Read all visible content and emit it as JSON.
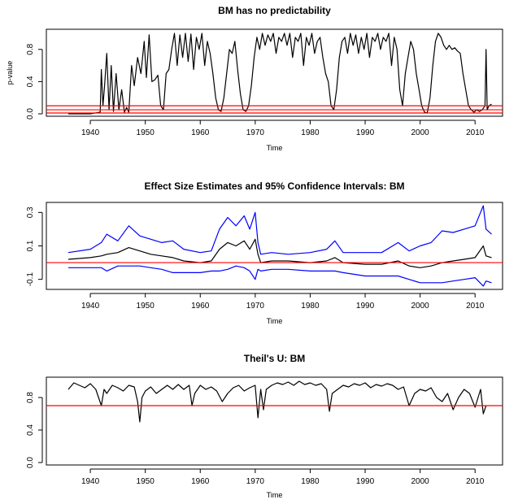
{
  "chart_data": [
    {
      "type": "line",
      "title": "BM has no predictability",
      "xlabel": "Time",
      "ylabel": "p-value",
      "xlim": [
        1932,
        2015
      ],
      "ylim": [
        -0.03,
        1.05
      ],
      "x_ticks": [
        "1940",
        "1950",
        "1960",
        "1970",
        "1980",
        "1990",
        "2000",
        "2010"
      ],
      "y_ticks": [
        "0.0",
        "0.4",
        "0.8"
      ],
      "x_tick_values": [
        1940,
        1950,
        1960,
        1970,
        1980,
        1990,
        2000,
        2010
      ],
      "y_tick_values": [
        0.0,
        0.4,
        0.8
      ],
      "reference_lines": [
        0.01,
        0.05,
        0.1
      ],
      "reference_color": "#ff0000",
      "series": [
        {
          "color": "#000000",
          "x": [
            1936.0,
            1940.0,
            1941.8,
            1942.0,
            1942.3,
            1942.6,
            1943.0,
            1943.4,
            1943.8,
            1944.2,
            1944.7,
            1945.2,
            1945.7,
            1946.2,
            1946.6,
            1947.0,
            1947.5,
            1948.0,
            1948.6,
            1949.2,
            1949.8,
            1950.2,
            1950.7,
            1951.2,
            1951.7,
            1952.3,
            1952.8,
            1953.3,
            1953.8,
            1954.3,
            1954.8,
            1955.3,
            1955.8,
            1956.3,
            1956.8,
            1957.3,
            1957.8,
            1958.3,
            1958.8,
            1959.3,
            1959.8,
            1960.3,
            1960.8,
            1961.3,
            1961.8,
            1962.3,
            1962.8,
            1963.3,
            1963.8,
            1964.3,
            1964.8,
            1965.3,
            1965.8,
            1966.3,
            1966.8,
            1967.3,
            1967.8,
            1968.3,
            1968.8,
            1969.3,
            1969.8,
            1970.3,
            1970.8,
            1971.3,
            1971.8,
            1972.3,
            1972.8,
            1973.3,
            1973.8,
            1974.3,
            1974.8,
            1975.3,
            1975.8,
            1976.3,
            1976.8,
            1977.3,
            1977.8,
            1978.3,
            1978.8,
            1979.3,
            1979.8,
            1980.3,
            1980.8,
            1981.3,
            1981.8,
            1982.3,
            1982.8,
            1983.3,
            1983.8,
            1984.3,
            1984.8,
            1985.3,
            1985.8,
            1986.3,
            1986.8,
            1987.3,
            1987.8,
            1988.3,
            1988.8,
            1989.3,
            1989.8,
            1990.3,
            1990.8,
            1991.3,
            1991.8,
            1992.3,
            1992.8,
            1993.3,
            1993.8,
            1994.3,
            1994.8,
            1995.3,
            1995.8,
            1996.3,
            1996.8,
            1997.3,
            1997.8,
            1998.3,
            1998.8,
            1999.3,
            1999.8,
            2000.3,
            2000.8,
            2001.3,
            2001.8,
            2002.3,
            2002.8,
            2003.3,
            2003.8,
            2004.3,
            2004.8,
            2005.3,
            2005.8,
            2006.3,
            2006.8,
            2007.3,
            2007.8,
            2008.3,
            2008.8,
            2009.3,
            2009.8,
            2010.3,
            2010.8,
            2011.3,
            2011.8,
            2012.0,
            2012.2,
            2012.5,
            2013.0
          ],
          "y": [
            0.0,
            0.0,
            0.02,
            0.55,
            0.1,
            0.35,
            0.75,
            0.05,
            0.6,
            0.03,
            0.5,
            0.05,
            0.3,
            0.02,
            0.08,
            0.02,
            0.6,
            0.35,
            0.7,
            0.5,
            0.9,
            0.45,
            0.98,
            0.4,
            0.42,
            0.48,
            0.1,
            0.05,
            0.5,
            0.55,
            0.8,
            1.0,
            0.6,
            0.98,
            0.7,
            1.0,
            0.65,
            0.99,
            0.55,
            0.95,
            0.8,
            1.0,
            0.6,
            0.9,
            0.75,
            0.5,
            0.2,
            0.05,
            0.03,
            0.2,
            0.5,
            0.8,
            0.75,
            0.9,
            0.55,
            0.25,
            0.05,
            0.03,
            0.1,
            0.35,
            0.7,
            0.95,
            0.8,
            1.0,
            0.85,
            0.98,
            0.9,
            1.0,
            0.75,
            0.95,
            0.9,
            1.0,
            0.85,
            1.0,
            0.7,
            0.95,
            0.9,
            1.0,
            0.6,
            0.95,
            0.85,
            1.0,
            0.75,
            0.9,
            0.95,
            0.7,
            0.5,
            0.4,
            0.1,
            0.05,
            0.3,
            0.7,
            0.9,
            0.95,
            0.75,
            1.0,
            0.85,
            0.98,
            0.75,
            0.95,
            0.8,
            1.0,
            0.7,
            0.95,
            0.9,
            1.0,
            0.8,
            0.95,
            0.9,
            1.0,
            0.6,
            0.95,
            0.8,
            0.3,
            0.1,
            0.5,
            0.7,
            0.9,
            0.8,
            0.5,
            0.3,
            0.1,
            0.02,
            0.01,
            0.2,
            0.6,
            0.9,
            1.0,
            0.95,
            0.85,
            0.8,
            0.85,
            0.8,
            0.82,
            0.78,
            0.75,
            0.5,
            0.3,
            0.1,
            0.05,
            0.02,
            0.05,
            0.03,
            0.05,
            0.1,
            0.8,
            0.05,
            0.1,
            0.12
          ]
        }
      ]
    },
    {
      "type": "line",
      "title": "Effect Size Estimates and 95% Confidence Intervals: BM",
      "xlabel": "Time",
      "ylabel": "",
      "xlim": [
        1932,
        2015
      ],
      "ylim": [
        -0.16,
        0.36
      ],
      "x_ticks": [
        "1940",
        "1950",
        "1960",
        "1970",
        "1980",
        "1990",
        "2000",
        "2010"
      ],
      "y_ticks": [
        "-0.1",
        "0.1",
        "0.3"
      ],
      "x_tick_values": [
        1940,
        1950,
        1960,
        1970,
        1980,
        1990,
        2000,
        2010
      ],
      "y_tick_values": [
        -0.1,
        0.1,
        0.3
      ],
      "reference_lines": [
        0.0
      ],
      "reference_color": "#ff0000",
      "series": [
        {
          "color": "#000000",
          "x": [
            1936.0,
            1940.0,
            1942.0,
            1943.0,
            1945.0,
            1947.0,
            1949.0,
            1951.0,
            1953.0,
            1955.0,
            1957.0,
            1960.0,
            1962.0,
            1963.5,
            1965.0,
            1966.5,
            1968.0,
            1969.0,
            1970.0,
            1970.5,
            1971.0,
            1973.0,
            1976.0,
            1980.0,
            1983.0,
            1984.5,
            1986.0,
            1990.0,
            1993.0,
            1996.0,
            1998.0,
            2000.0,
            2002.0,
            2004.0,
            2006.0,
            2008.0,
            2010.0,
            2011.5,
            2012.0,
            2013.0
          ],
          "y": [
            0.02,
            0.03,
            0.04,
            0.05,
            0.06,
            0.09,
            0.07,
            0.05,
            0.04,
            0.03,
            0.01,
            0.0,
            0.01,
            0.08,
            0.12,
            0.1,
            0.13,
            0.08,
            0.14,
            0.05,
            0.0,
            0.01,
            0.01,
            0.0,
            0.01,
            0.03,
            0.0,
            -0.01,
            -0.01,
            0.01,
            -0.02,
            -0.03,
            -0.02,
            0.0,
            0.01,
            0.02,
            0.03,
            0.1,
            0.04,
            0.03
          ]
        },
        {
          "color": "#0000ff",
          "x": [
            1936.0,
            1940.0,
            1942.0,
            1943.0,
            1945.0,
            1947.0,
            1949.0,
            1951.0,
            1953.0,
            1955.0,
            1957.0,
            1960.0,
            1962.0,
            1963.5,
            1965.0,
            1966.5,
            1968.0,
            1969.0,
            1970.0,
            1970.5,
            1971.0,
            1973.0,
            1976.0,
            1980.0,
            1983.0,
            1984.5,
            1986.0,
            1990.0,
            1993.0,
            1996.0,
            1998.0,
            2000.0,
            2002.0,
            2004.0,
            2006.0,
            2008.0,
            2010.0,
            2011.5,
            2012.0,
            2013.0
          ],
          "y": [
            0.06,
            0.08,
            0.12,
            0.17,
            0.13,
            0.22,
            0.16,
            0.14,
            0.12,
            0.13,
            0.08,
            0.06,
            0.07,
            0.2,
            0.27,
            0.22,
            0.28,
            0.2,
            0.3,
            0.12,
            0.05,
            0.06,
            0.05,
            0.06,
            0.08,
            0.13,
            0.06,
            0.06,
            0.06,
            0.12,
            0.07,
            0.1,
            0.12,
            0.19,
            0.18,
            0.2,
            0.22,
            0.34,
            0.2,
            0.17
          ]
        },
        {
          "color": "#0000ff",
          "x": [
            1936.0,
            1940.0,
            1942.0,
            1943.0,
            1945.0,
            1947.0,
            1949.0,
            1951.0,
            1953.0,
            1955.0,
            1957.0,
            1960.0,
            1962.0,
            1963.5,
            1965.0,
            1966.5,
            1968.0,
            1969.0,
            1970.0,
            1970.5,
            1971.0,
            1973.0,
            1976.0,
            1980.0,
            1983.0,
            1984.5,
            1986.0,
            1990.0,
            1993.0,
            1996.0,
            1998.0,
            2000.0,
            2002.0,
            2004.0,
            2006.0,
            2008.0,
            2010.0,
            2011.5,
            2012.0,
            2013.0
          ],
          "y": [
            -0.03,
            -0.03,
            -0.03,
            -0.05,
            -0.02,
            -0.02,
            -0.02,
            -0.03,
            -0.04,
            -0.06,
            -0.06,
            -0.06,
            -0.05,
            -0.05,
            -0.04,
            -0.02,
            -0.03,
            -0.05,
            -0.1,
            -0.04,
            -0.05,
            -0.04,
            -0.04,
            -0.05,
            -0.05,
            -0.05,
            -0.06,
            -0.08,
            -0.08,
            -0.08,
            -0.1,
            -0.12,
            -0.12,
            -0.12,
            -0.11,
            -0.1,
            -0.09,
            -0.14,
            -0.11,
            -0.12
          ]
        }
      ]
    },
    {
      "type": "line",
      "title": "Theil's U: BM",
      "xlabel": "Time",
      "ylabel": "",
      "xlim": [
        1932,
        2015
      ],
      "ylim": [
        -0.03,
        1.05
      ],
      "x_ticks": [
        "1940",
        "1950",
        "1960",
        "1970",
        "1980",
        "1990",
        "2000",
        "2010"
      ],
      "y_ticks": [
        "0.0",
        "0.4",
        "0.8"
      ],
      "x_tick_values": [
        1940,
        1950,
        1960,
        1970,
        1980,
        1990,
        2000,
        2010
      ],
      "y_tick_values": [
        0.0,
        0.4,
        0.8
      ],
      "reference_lines": [
        0.7
      ],
      "reference_color": "#ff0000",
      "series": [
        {
          "color": "#000000",
          "x": [
            1936.0,
            1937.0,
            1938.0,
            1939.0,
            1940.0,
            1941.0,
            1942.0,
            1942.5,
            1943.0,
            1944.0,
            1945.0,
            1946.0,
            1947.0,
            1948.0,
            1948.6,
            1949.0,
            1949.4,
            1950.0,
            1951.0,
            1952.0,
            1953.0,
            1954.0,
            1955.0,
            1956.0,
            1957.0,
            1958.0,
            1958.5,
            1959.0,
            1960.0,
            1961.0,
            1962.0,
            1963.0,
            1964.0,
            1965.0,
            1966.0,
            1967.0,
            1968.0,
            1969.0,
            1970.0,
            1970.5,
            1971.0,
            1971.5,
            1972.0,
            1973.0,
            1974.0,
            1975.0,
            1976.0,
            1977.0,
            1978.0,
            1979.0,
            1980.0,
            1981.0,
            1982.0,
            1983.0,
            1983.5,
            1984.0,
            1985.0,
            1986.0,
            1987.0,
            1988.0,
            1989.0,
            1990.0,
            1991.0,
            1992.0,
            1993.0,
            1994.0,
            1995.0,
            1996.0,
            1997.0,
            1998.0,
            1999.0,
            2000.0,
            2001.0,
            2002.0,
            2003.0,
            2004.0,
            2005.0,
            2006.0,
            2007.0,
            2008.0,
            2009.0,
            2010.0,
            2011.0,
            2011.5,
            2012.0
          ],
          "y": [
            0.9,
            0.98,
            0.95,
            0.92,
            0.97,
            0.9,
            0.7,
            0.9,
            0.85,
            0.95,
            0.92,
            0.88,
            0.95,
            0.93,
            0.75,
            0.5,
            0.8,
            0.88,
            0.93,
            0.85,
            0.9,
            0.95,
            0.9,
            0.96,
            0.9,
            0.95,
            0.7,
            0.85,
            0.95,
            0.9,
            0.93,
            0.88,
            0.75,
            0.85,
            0.92,
            0.95,
            0.88,
            0.92,
            0.95,
            0.55,
            0.9,
            0.65,
            0.9,
            0.95,
            0.98,
            0.96,
            0.99,
            0.95,
            1.0,
            0.96,
            0.98,
            0.95,
            0.97,
            0.9,
            0.63,
            0.85,
            0.9,
            0.95,
            0.93,
            0.97,
            0.95,
            0.98,
            0.92,
            0.96,
            0.94,
            0.97,
            0.95,
            0.9,
            0.93,
            0.7,
            0.85,
            0.9,
            0.88,
            0.92,
            0.8,
            0.75,
            0.85,
            0.65,
            0.8,
            0.9,
            0.85,
            0.68,
            0.9,
            0.6,
            0.7
          ]
        }
      ]
    }
  ]
}
